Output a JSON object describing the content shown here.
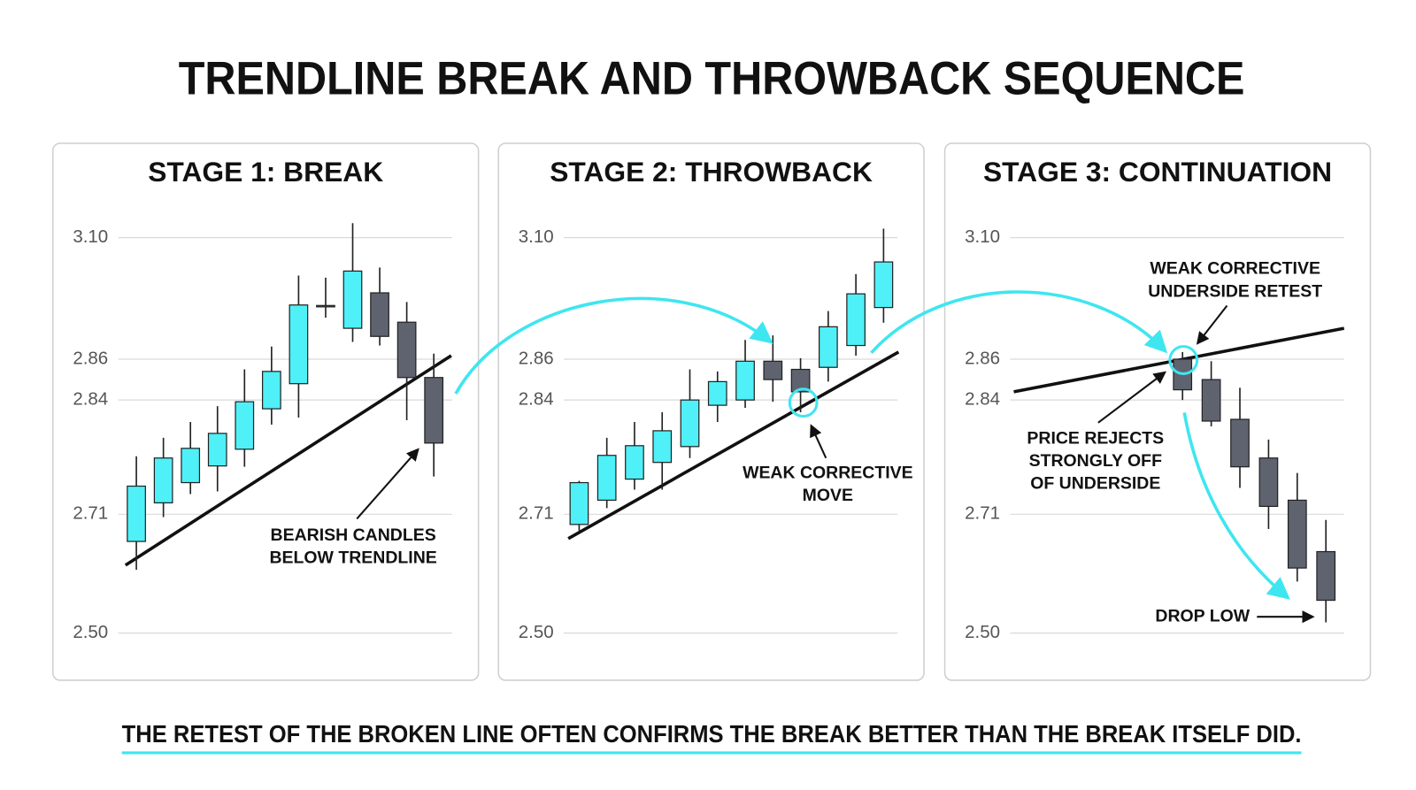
{
  "title": "TRENDLINE BREAK AND THROWBACK SEQUENCE",
  "footer": "THE RETEST OF THE BROKEN LINE OFTEN CONFIRMS THE BREAK BETTER THAN THE BREAK ITSELF DID.",
  "chart_data": [
    {
      "type": "candlestick",
      "title": "STAGE 1: BREAK",
      "open": [
        2.662,
        2.723,
        2.746,
        2.765,
        2.784,
        2.83,
        2.848,
        2.966,
        2.921,
        2.991,
        2.933,
        2.851
      ],
      "high": [
        2.776,
        2.797,
        2.815,
        2.833,
        2.855,
        2.885,
        3.025,
        3.021,
        3.129,
        3.041,
        2.973,
        2.871
      ],
      "low": [
        2.612,
        2.705,
        2.733,
        2.736,
        2.764,
        2.812,
        2.82,
        2.942,
        2.894,
        2.887,
        2.817,
        2.753
      ],
      "close": [
        2.742,
        2.774,
        2.785,
        2.802,
        2.838,
        2.854,
        2.967,
        2.965,
        3.034,
        2.905,
        2.851,
        2.791
      ],
      "up_color": "#4ff0f7",
      "down_color": "#5f636f",
      "ylim": [
        2.48,
        3.14
      ],
      "yticks": [
        {
          "value": 2.5,
          "label": "2.50"
        },
        2.71,
        2.84,
        2.86,
        {
          "value": 3.1,
          "label": "3.10"
        }
      ],
      "grid": true,
      "trendline": [
        2.62,
        2.867
      ],
      "annotations": [
        {
          "lines": [
            "BEARISH CANDLES",
            "BELOW TRENDLINE"
          ]
        }
      ]
    },
    {
      "type": "candlestick",
      "title": "STAGE 2: THROWBACK",
      "open": [
        2.692,
        2.726,
        2.75,
        2.769,
        2.787,
        2.834,
        2.84,
        2.859,
        2.855,
        2.856,
        2.887,
        2.962
      ],
      "high": [
        2.748,
        2.797,
        2.815,
        2.826,
        2.855,
        2.854,
        2.898,
        2.907,
        2.862,
        2.955,
        3.028,
        3.118
      ],
      "low": [
        2.681,
        2.717,
        2.738,
        2.738,
        2.774,
        2.815,
        2.831,
        2.838,
        2.826,
        2.849,
        2.867,
        2.932
      ],
      "close": [
        2.746,
        2.777,
        2.788,
        2.805,
        2.84,
        2.849,
        2.859,
        2.85,
        2.844,
        2.924,
        2.989,
        3.052
      ],
      "up_color": "#4ff0f7",
      "down_color": "#5f636f",
      "ylim": [
        2.48,
        3.14
      ],
      "yticks": [
        {
          "value": 2.5,
          "label": "2.50"
        },
        2.71,
        2.84,
        2.86,
        {
          "value": 3.1,
          "label": "3.10"
        }
      ],
      "grid": true,
      "trendline": [
        2.667,
        2.874
      ],
      "annotations": [
        {
          "lines": [
            "WEAK CORRECTIVE",
            "MOVE"
          ]
        }
      ]
    },
    {
      "type": "candlestick",
      "title": "STAGE 3: CONTINUATION",
      "open": [
        2.86,
        2.85,
        2.818,
        2.774,
        2.726,
        2.644
      ],
      "high": [
        2.874,
        2.859,
        2.846,
        2.795,
        2.757,
        2.7
      ],
      "low": [
        2.84,
        2.81,
        2.74,
        2.684,
        2.591,
        2.519
      ],
      "close": [
        2.845,
        2.816,
        2.764,
        2.719,
        2.615,
        2.558
      ],
      "up_color": "#4ff0f7",
      "down_color": "#5f636f",
      "ylim": [
        2.48,
        3.14
      ],
      "yticks": [
        {
          "value": 2.5,
          "label": "2.50"
        },
        2.71,
        2.84,
        2.86,
        {
          "value": 3.1,
          "label": "3.10"
        }
      ],
      "grid": true,
      "trendline": [
        2.844,
        2.921
      ],
      "annotations": [
        {
          "lines": [
            "WEAK CORRECTIVE",
            "UNDERSIDE RETEST"
          ]
        },
        {
          "lines": [
            "PRICE REJECTS",
            "STRONGLY OFF",
            "OF UNDERSIDE"
          ]
        },
        {
          "lines": [
            "DROP LOW"
          ]
        }
      ]
    }
  ]
}
